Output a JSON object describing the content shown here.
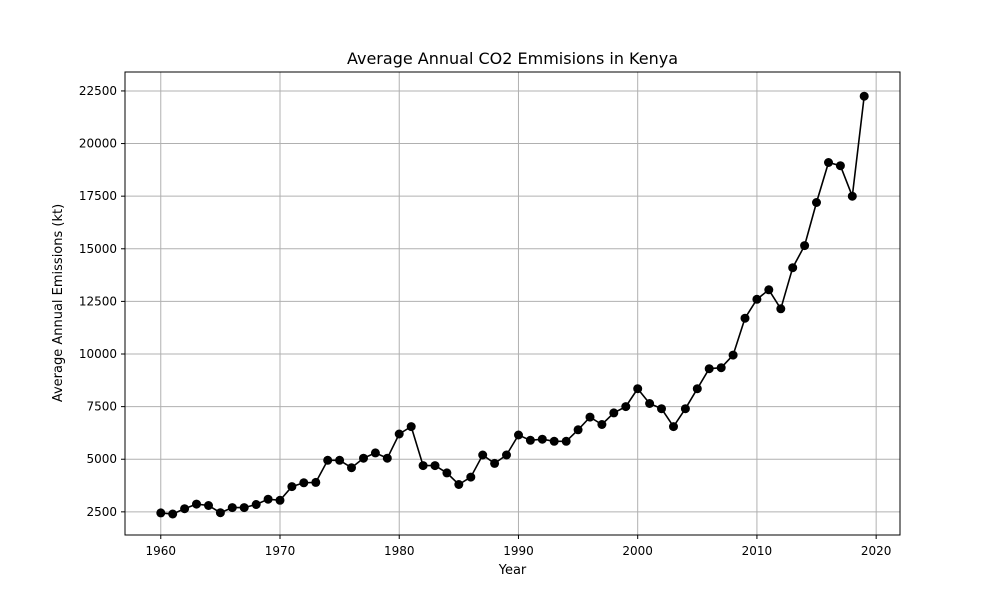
{
  "chart_data": {
    "type": "line",
    "title": "Average Annual CO2 Emmisions in Kenya",
    "xlabel": "Year",
    "ylabel": "Average Annual Emissions (kt)",
    "xlim": [
      1957,
      2022
    ],
    "ylim": [
      1400,
      23400
    ],
    "xticks": [
      1960,
      1970,
      1980,
      1990,
      2000,
      2010,
      2020
    ],
    "yticks": [
      2500,
      5000,
      7500,
      10000,
      12500,
      15000,
      17500,
      20000,
      22500
    ],
    "grid": true,
    "line_color": "#000000",
    "marker": "circle",
    "series": [
      {
        "x": [
          1960,
          1961,
          1962,
          1963,
          1964,
          1965,
          1966,
          1967,
          1968,
          1969,
          1970,
          1971,
          1972,
          1973,
          1974,
          1975,
          1976,
          1977,
          1978,
          1979,
          1980,
          1981,
          1982,
          1983,
          1984,
          1985,
          1986,
          1987,
          1988,
          1989,
          1990,
          1991,
          1992,
          1993,
          1994,
          1995,
          1996,
          1997,
          1998,
          1999,
          2000,
          2001,
          2002,
          2003,
          2004,
          2005,
          2006,
          2007,
          2008,
          2009,
          2010,
          2011,
          2012,
          2013,
          2014,
          2015,
          2016,
          2017,
          2018,
          2019
        ],
        "values": [
          2450,
          2400,
          2650,
          2870,
          2800,
          2460,
          2700,
          2700,
          2850,
          3100,
          3050,
          3700,
          3880,
          3900,
          4950,
          4950,
          4600,
          5050,
          5300,
          5050,
          6200,
          6550,
          4700,
          4700,
          4350,
          3800,
          4150,
          5200,
          4800,
          5200,
          6150,
          5900,
          5950,
          5850,
          5850,
          6400,
          7000,
          6650,
          7200,
          7500,
          8350,
          7650,
          7400,
          6550,
          7400,
          8350,
          9300,
          9350,
          9950,
          11700,
          12600,
          13050,
          12150,
          14100,
          15150,
          17200,
          19100,
          18950,
          17500,
          22250
        ]
      }
    ]
  }
}
